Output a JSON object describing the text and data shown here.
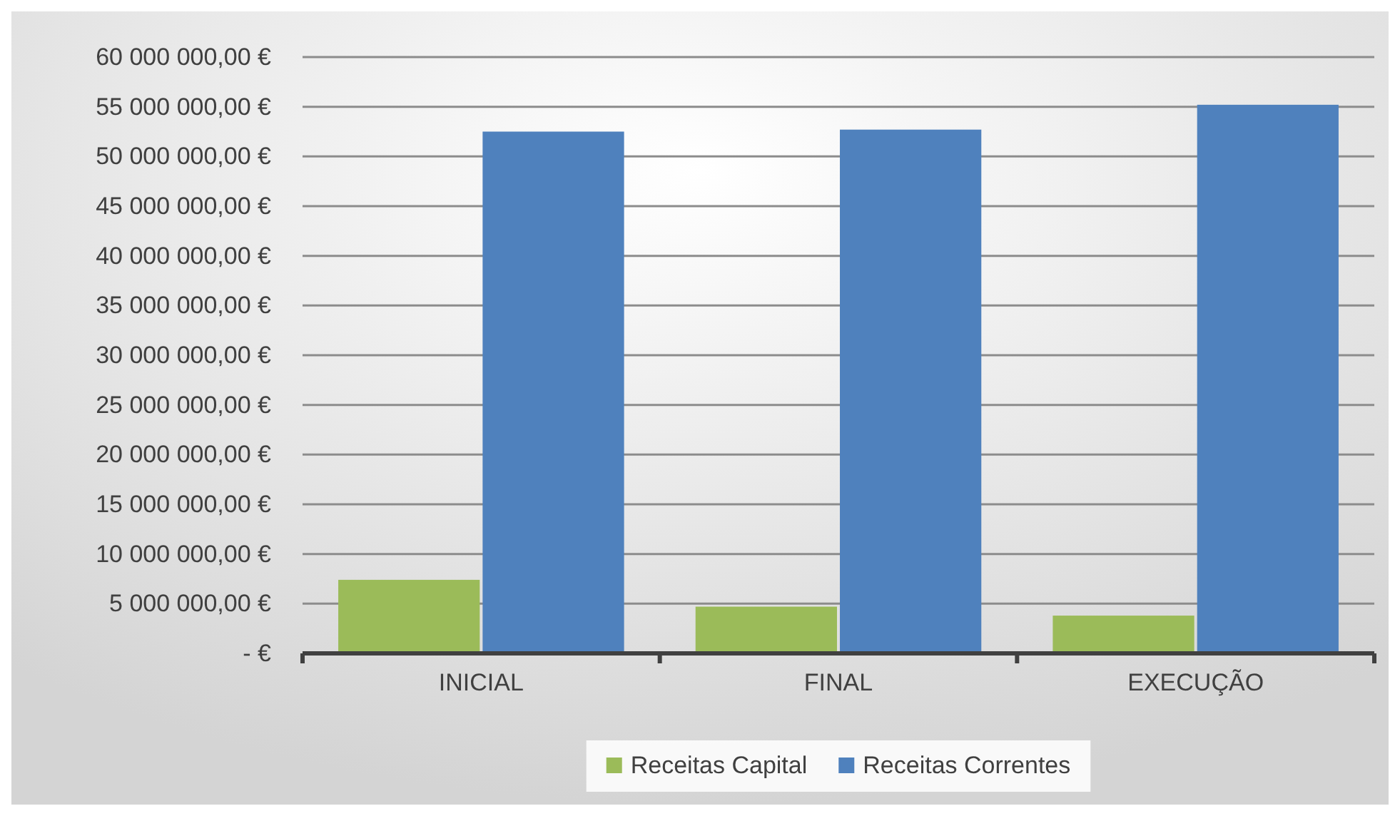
{
  "chart_data": {
    "type": "bar",
    "categories": [
      "INICIAL",
      "FINAL",
      "EXECUÇÃO"
    ],
    "series": [
      {
        "name": "Receitas Capital",
        "color": "#9bbb59",
        "values": [
          7400000,
          4700000,
          3800000
        ]
      },
      {
        "name": "Receitas Correntes",
        "color": "#4f81bd",
        "values": [
          52500000,
          52700000,
          55200000
        ]
      }
    ],
    "ylim": [
      0,
      60000000
    ],
    "yticks": [
      {
        "value": 0,
        "label": "-   €"
      },
      {
        "value": 5000000,
        "label": "5 000 000,00 €"
      },
      {
        "value": 10000000,
        "label": "10 000 000,00 €"
      },
      {
        "value": 15000000,
        "label": "15 000 000,00 €"
      },
      {
        "value": 20000000,
        "label": "20 000 000,00 €"
      },
      {
        "value": 25000000,
        "label": "25 000 000,00 €"
      },
      {
        "value": 30000000,
        "label": "30 000 000,00 €"
      },
      {
        "value": 35000000,
        "label": "35 000 000,00 €"
      },
      {
        "value": 40000000,
        "label": "40 000 000,00 €"
      },
      {
        "value": 45000000,
        "label": "45 000 000,00 €"
      },
      {
        "value": 50000000,
        "label": "50 000 000,00 €"
      },
      {
        "value": 55000000,
        "label": "55 000 000,00 €"
      },
      {
        "value": 60000000,
        "label": "60 000 000,00 €"
      }
    ],
    "grid": "y",
    "legend": "bottom"
  }
}
